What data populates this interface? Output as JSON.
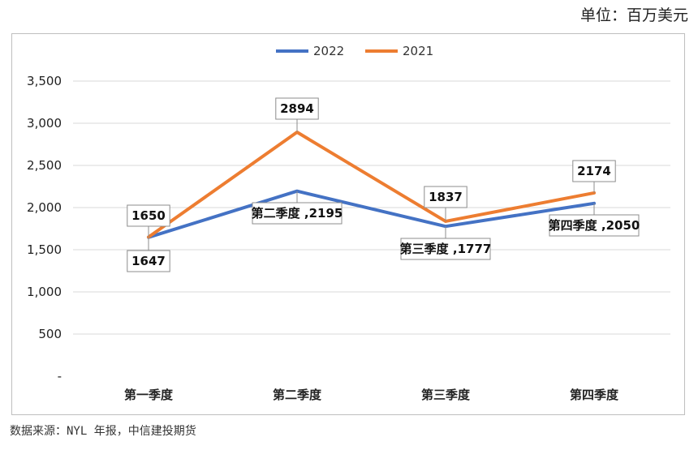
{
  "unit_label": "单位：百万美元",
  "source": "数据来源：NYL 年报，中信建投期货",
  "chart_data": {
    "type": "line",
    "categories": [
      "第一季度",
      "第二季度",
      "第三季度",
      "第四季度"
    ],
    "ylim": [
      0,
      3500
    ],
    "yticks": [
      {
        "value": 0,
        "label": "-"
      },
      {
        "value": 500,
        "label": "500"
      },
      {
        "value": 1000,
        "label": "1,000"
      },
      {
        "value": 1500,
        "label": "1,500"
      },
      {
        "value": 2000,
        "label": "2,000"
      },
      {
        "value": 2500,
        "label": "2,500"
      },
      {
        "value": 3000,
        "label": "3,000"
      },
      {
        "value": 3500,
        "label": "3,500"
      }
    ],
    "grid": true,
    "legend": "top-center",
    "series": [
      {
        "name": "2022",
        "color": "#4472c4",
        "values": [
          1647,
          2195,
          1777,
          2050
        ],
        "labels": [
          "1647",
          "第二季度 ,2195",
          "第三季度 ,1777",
          "第四季度 ,2050"
        ]
      },
      {
        "name": "2021",
        "color": "#ed7d31",
        "values": [
          1650,
          2894,
          1837,
          2174
        ],
        "labels": [
          "1650",
          "2894",
          "1837",
          "2174"
        ]
      }
    ]
  }
}
